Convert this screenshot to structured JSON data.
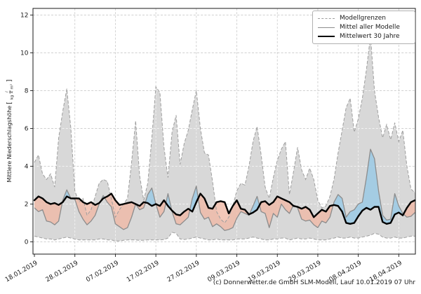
{
  "figure": {
    "footer": "(c) Donnerwetter.de GmbH SLM-Modell, Lauf 10.01.2019 07 Uhr"
  },
  "chart_data": {
    "type": "line",
    "title": "",
    "ylabel": "Mittlere Niederschlagshöhe",
    "ylabel_unit_num": "l",
    "ylabel_unit_den": "kg × m²",
    "grid": true,
    "legend_position": "upper right",
    "legend": {
      "entries": [
        {
          "label": "Modellgrenzen",
          "style": "dashed-gray"
        },
        {
          "label": "Mittel aller Modelle",
          "style": "solid-gray"
        },
        {
          "label": "Mittelwert 30 Jahre",
          "style": "thick-black"
        }
      ]
    },
    "x_is_day_index": true,
    "x_tick_days": [
      0,
      10,
      20,
      30,
      40,
      50,
      60,
      70,
      80,
      90
    ],
    "x_tick_labels": [
      "18.01.2019",
      "28.01.2019",
      "07.02.2019",
      "17.02.2019",
      "27.02.2019",
      "09.03.2019",
      "19.03.2019",
      "29.03.2019",
      "08.04.2019",
      "18.04.2019"
    ],
    "y_ticks": [
      0,
      2,
      4,
      6,
      8,
      10,
      12
    ],
    "xlim": [
      -0.35,
      94.1
    ],
    "ylim": [
      -0.65,
      12.35
    ],
    "series": [
      {
        "name": "Modellgrenze oben (max)",
        "values": [
          4.2,
          4.6,
          3.6,
          3.3,
          3.6,
          2.9,
          5.5,
          6.9,
          8.1,
          6.0,
          2.7,
          2.1,
          2.3,
          1.4,
          1.7,
          2.4,
          3.1,
          3.3,
          3.2,
          2.3,
          1.3,
          1.7,
          2.0,
          2.3,
          4.2,
          6.4,
          3.5,
          2.2,
          3.1,
          5.5,
          8.2,
          7.9,
          5.0,
          3.4,
          5.8,
          6.7,
          4.1,
          5.2,
          5.9,
          7.0,
          8.0,
          6.0,
          4.7,
          4.6,
          3.2,
          1.6,
          1.2,
          1.0,
          1.3,
          1.9,
          2.7,
          3.1,
          3.0,
          4.0,
          5.3,
          6.1,
          4.6,
          2.9,
          2.3,
          3.4,
          4.3,
          4.9,
          5.3,
          2.5,
          3.7,
          5.0,
          3.8,
          3.3,
          3.9,
          3.3,
          2.2,
          1.8,
          1.9,
          2.4,
          3.3,
          4.7,
          5.9,
          7.1,
          7.6,
          5.8,
          6.5,
          7.6,
          9.1,
          10.9,
          8.0,
          6.6,
          5.5,
          6.2,
          5.4,
          6.3,
          5.3,
          5.9,
          4.0,
          2.8,
          2.6
        ]
      },
      {
        "name": "Modellgrenze unten (min)",
        "values": [
          0.3,
          0.25,
          0.2,
          0.15,
          0.15,
          0.1,
          0.15,
          0.2,
          0.25,
          0.2,
          0.15,
          0.1,
          0.1,
          0.1,
          0.1,
          0.1,
          0.15,
          0.15,
          0.1,
          0.1,
          0.05,
          0.05,
          0.08,
          0.1,
          0.1,
          0.1,
          0.08,
          0.08,
          0.1,
          0.1,
          0.1,
          0.1,
          0.12,
          0.2,
          0.5,
          0.45,
          0.15,
          0.12,
          0.15,
          0.2,
          0.25,
          0.2,
          0.15,
          0.1,
          0.1,
          0.15,
          0.1,
          0.1,
          0.1,
          0.1,
          0.15,
          0.15,
          0.15,
          0.2,
          0.25,
          0.2,
          0.15,
          0.1,
          0.1,
          0.15,
          0.15,
          0.2,
          0.2,
          0.1,
          0.15,
          0.2,
          0.15,
          0.15,
          0.2,
          0.15,
          0.1,
          0.1,
          0.1,
          0.15,
          0.2,
          0.25,
          0.2,
          0.2,
          0.25,
          0.2,
          0.2,
          0.25,
          0.3,
          0.35,
          0.45,
          0.4,
          0.25,
          0.2,
          0.2,
          0.25,
          0.2,
          0.2,
          0.25,
          0.3,
          0.3
        ]
      },
      {
        "name": "Mittel aller Modelle",
        "values": [
          1.8,
          1.6,
          1.7,
          1.1,
          1.05,
          0.9,
          1.1,
          2.2,
          2.75,
          2.3,
          2.25,
          1.6,
          1.2,
          0.9,
          1.1,
          1.4,
          2.0,
          2.45,
          2.1,
          1.85,
          0.95,
          0.8,
          0.65,
          0.75,
          1.3,
          2.0,
          1.7,
          1.8,
          2.5,
          2.85,
          2.0,
          1.3,
          1.6,
          2.55,
          1.6,
          0.95,
          0.9,
          1.1,
          1.3,
          2.3,
          2.95,
          1.55,
          1.2,
          1.3,
          0.8,
          0.95,
          0.8,
          0.6,
          0.65,
          0.75,
          1.25,
          1.6,
          1.5,
          1.4,
          1.9,
          2.4,
          1.6,
          1.5,
          0.75,
          1.5,
          1.3,
          2.0,
          1.7,
          1.5,
          1.95,
          1.8,
          1.2,
          1.1,
          1.15,
          0.9,
          0.75,
          1.1,
          1.0,
          1.3,
          2.1,
          2.5,
          2.3,
          1.3,
          1.6,
          1.7,
          2.0,
          2.1,
          3.4,
          4.9,
          4.4,
          2.7,
          1.4,
          1.15,
          1.2,
          2.55,
          1.9,
          1.5,
          1.3,
          1.35,
          1.55
        ]
      },
      {
        "name": "Mittelwert 30 Jahre",
        "values": [
          2.2,
          2.4,
          2.3,
          2.1,
          2.0,
          2.05,
          1.95,
          2.1,
          2.4,
          2.3,
          2.3,
          2.3,
          2.1,
          2.0,
          2.1,
          1.95,
          2.05,
          2.3,
          2.4,
          2.55,
          2.2,
          1.95,
          2.0,
          2.05,
          2.1,
          2.0,
          1.9,
          2.1,
          2.05,
          1.9,
          2.0,
          1.9,
          2.2,
          1.9,
          1.65,
          1.45,
          1.4,
          1.6,
          1.75,
          1.6,
          2.1,
          2.55,
          2.3,
          1.8,
          1.75,
          2.1,
          2.15,
          2.1,
          1.5,
          1.9,
          2.2,
          1.75,
          1.7,
          1.45,
          1.55,
          1.7,
          2.1,
          2.15,
          1.95,
          2.1,
          2.4,
          2.3,
          2.2,
          2.1,
          1.9,
          1.85,
          1.75,
          1.85,
          1.7,
          1.3,
          1.5,
          1.7,
          1.6,
          1.9,
          1.95,
          1.9,
          1.6,
          1.0,
          0.95,
          1.0,
          1.35,
          1.65,
          1.8,
          1.7,
          1.85,
          1.85,
          1.05,
          0.95,
          1.0,
          1.45,
          1.55,
          1.4,
          1.8,
          2.1,
          2.2
        ]
      }
    ],
    "colors": {
      "band_fill": "#d8d8d8",
      "band_edge": "#9e9e9e",
      "model_mean_line": "#8c8c8c",
      "mean30_line": "#000000",
      "above_normal_fill": "#9fcbe4",
      "below_normal_fill": "#f0b9a6",
      "grid_line": "#c9c9c9",
      "axis_text": "#1a1a1a"
    }
  }
}
